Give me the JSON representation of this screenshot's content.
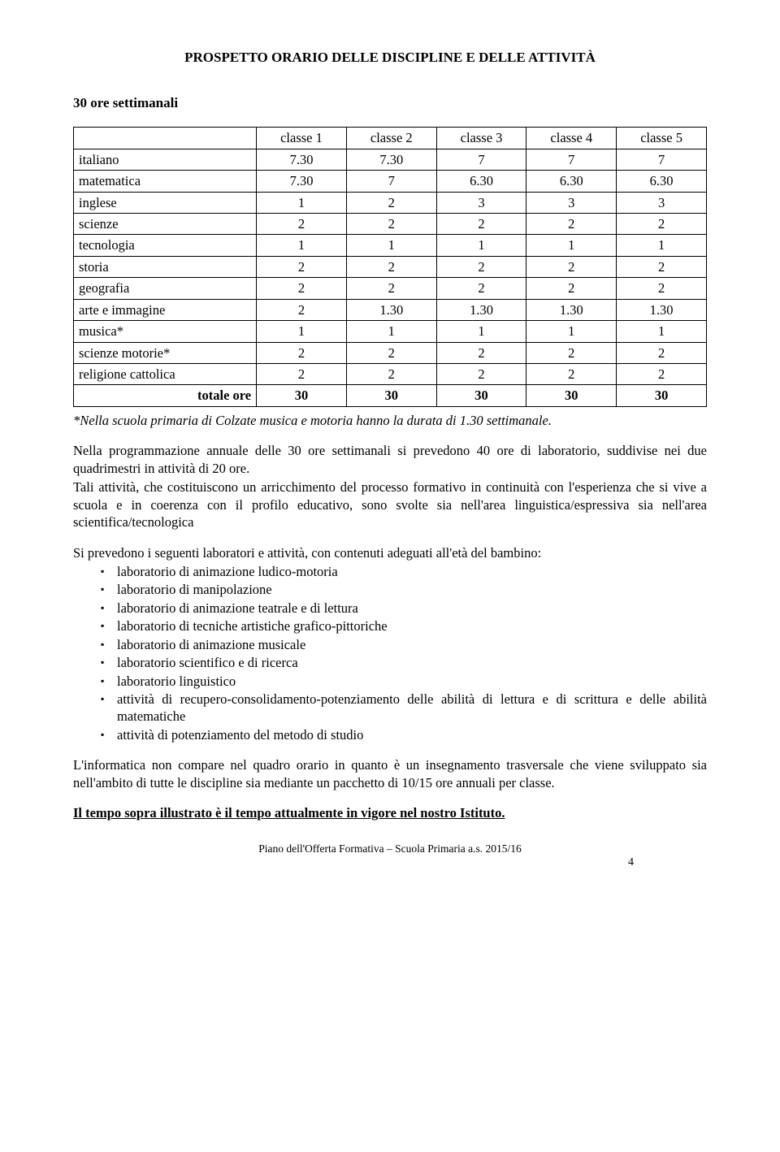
{
  "title": "PROSPETTO ORARIO DELLE  DISCIPLINE E DELLE ATTIVITÀ",
  "subtitle": "30 ore settimanali",
  "table": {
    "columns": [
      "",
      "classe 1",
      "classe 2",
      "classe 3",
      "classe 4",
      "classe 5"
    ],
    "rows": [
      {
        "label": "italiano",
        "values": [
          "7.30",
          "7.30",
          "7",
          "7",
          "7"
        ]
      },
      {
        "label": "matematica",
        "values": [
          "7.30",
          "7",
          "6.30",
          "6.30",
          "6.30"
        ]
      },
      {
        "label": "inglese",
        "values": [
          "1",
          "2",
          "3",
          "3",
          "3"
        ]
      },
      {
        "label": "scienze",
        "values": [
          "2",
          "2",
          "2",
          "2",
          "2"
        ]
      },
      {
        "label": "tecnologia",
        "values": [
          "1",
          "1",
          "1",
          "1",
          "1"
        ]
      },
      {
        "label": "storia",
        "values": [
          "2",
          "2",
          "2",
          "2",
          "2"
        ]
      },
      {
        "label": "geografia",
        "values": [
          "2",
          "2",
          "2",
          "2",
          "2"
        ]
      },
      {
        "label": "arte e immagine",
        "values": [
          "2",
          "1.30",
          "1.30",
          "1.30",
          "1.30"
        ]
      },
      {
        "label": "musica*",
        "values": [
          "1",
          "1",
          "1",
          "1",
          "1"
        ]
      },
      {
        "label": "scienze motorie*",
        "values": [
          "2",
          "2",
          "2",
          "2",
          "2"
        ]
      },
      {
        "label": "religione cattolica",
        "values": [
          "2",
          "2",
          "2",
          "2",
          "2"
        ]
      }
    ],
    "total": {
      "label": "totale ore",
      "values": [
        "30",
        "30",
        "30",
        "30",
        "30"
      ]
    }
  },
  "note": "*Nella scuola primaria di Colzate musica e motoria hanno la durata di 1.30 settimanale.",
  "para1": "Nella programmazione annuale delle 30 ore settimanali si prevedono 40 ore di laboratorio, suddivise nei due quadrimestri in attività di 20 ore.",
  "para2": "Tali attività, che costituiscono un arricchimento del processo formativo in continuità con l'esperienza che si vive a scuola e in coerenza con il profilo educativo, sono svolte sia nell'area linguistica/espressiva sia nell'area scientifica/tecnologica",
  "para3": "Si prevedono i seguenti laboratori e attività, con contenuti adeguati all'età del bambino:",
  "bullets": [
    "laboratorio di animazione ludico-motoria",
    "laboratorio di manipolazione",
    "laboratorio di animazione teatrale e di lettura",
    "laboratorio di tecniche artistiche grafico-pittoriche",
    "laboratorio di animazione musicale",
    "laboratorio scientifico e di ricerca",
    "laboratorio linguistico",
    "attività di recupero-consolidamento-potenziamento delle abilità di lettura e di scrittura e delle abilità matematiche",
    "attività di potenziamento del metodo di studio"
  ],
  "para4": "L'informatica non compare nel quadro orario in quanto è un insegnamento trasversale che viene sviluppato sia nell'ambito di tutte le discipline sia mediante un pacchetto di 10/15 ore annuali per classe.",
  "closing": "Il tempo sopra illustrato è il tempo attualmente in vigore nel nostro Istituto.",
  "footer": "Piano dell'Offerta Formativa – Scuola Primaria a.s. 2015/16",
  "pagenum": "4"
}
